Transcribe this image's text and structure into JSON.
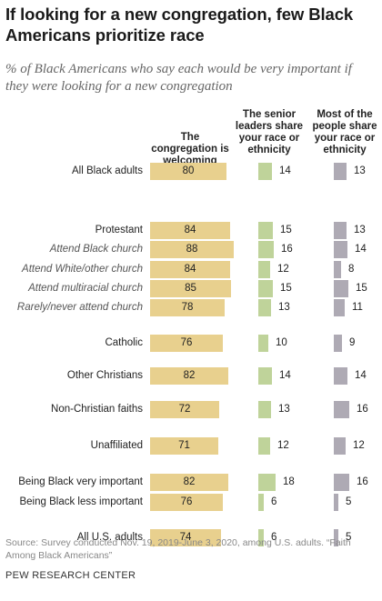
{
  "title": "If looking for a new congregation, few Black Americans prioritize race",
  "subtitle": "% of Black Americans who say each would be very important if they were looking for a new congregation",
  "source": "Source: Survey conducted Nov. 19, 2019-June 3, 2020, among U.S. adults. “Faith Among Black Americans”",
  "brand": "PEW RESEARCH CENTER",
  "colors": {
    "col1": "#e8d08e",
    "col2": "#bfd39a",
    "col3": "#aeaab4"
  },
  "chart_data": {
    "type": "bar",
    "title": "If looking for a new congregation, few Black Americans prioritize race",
    "series": [
      {
        "name": "The congregation is welcoming",
        "values": [
          80,
          84,
          88,
          84,
          85,
          78,
          76,
          82,
          72,
          71,
          82,
          76,
          74
        ]
      },
      {
        "name": "The senior leaders share your race or ethnicity",
        "values": [
          14,
          15,
          16,
          12,
          15,
          13,
          10,
          14,
          13,
          12,
          18,
          6,
          6
        ]
      },
      {
        "name": "Most of the people share your race or ethnicity",
        "values": [
          13,
          13,
          14,
          8,
          15,
          11,
          9,
          14,
          16,
          12,
          16,
          5,
          5
        ]
      }
    ],
    "categories": [
      "All Black adults",
      "Protestant",
      "Attend Black church",
      "Attend White/other church",
      "Attend multiracial church",
      "Rarely/never attend church",
      "Catholic",
      "Other Christians",
      "Non-Christian faiths",
      "Unaffiliated",
      "Being Black very important",
      "Being Black less important",
      "All U.S. adults"
    ],
    "italic_categories": [
      2,
      3,
      4,
      5
    ]
  }
}
